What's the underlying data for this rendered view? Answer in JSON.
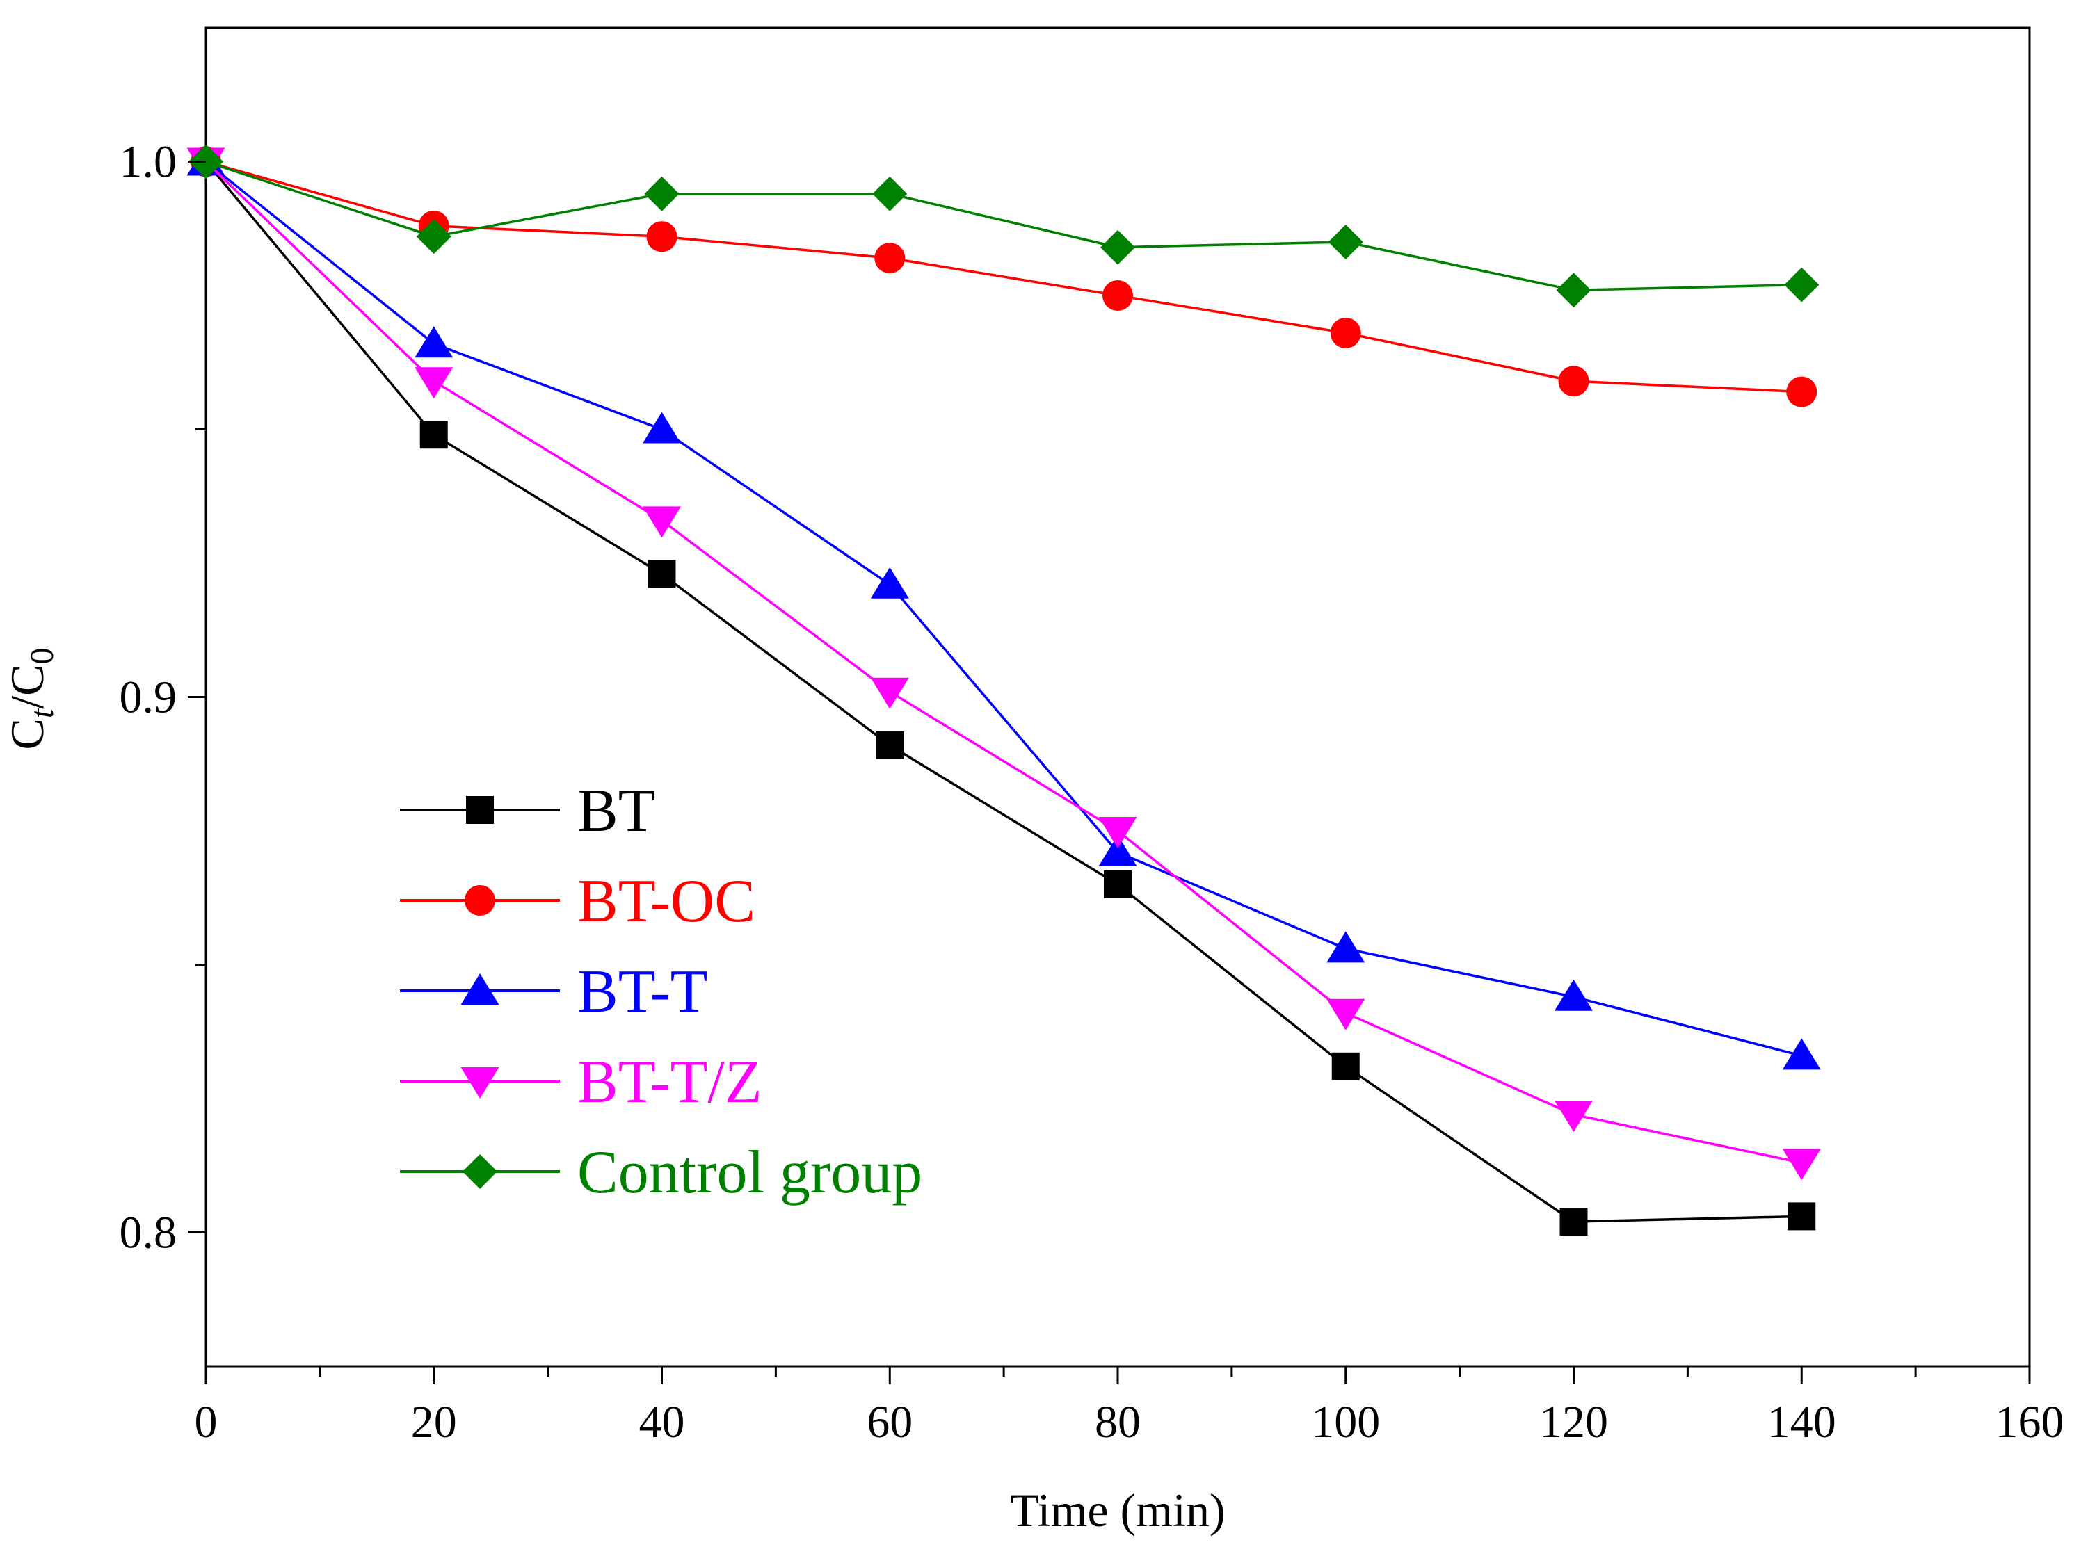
{
  "chart_data": {
    "type": "line",
    "title": "",
    "xlabel": "Time (min)",
    "ylabel_main": "C",
    "ylabel_sub1": "t",
    "ylabel_mid": "/C",
    "ylabel_sub2": "0",
    "xlim": [
      0,
      160
    ],
    "ylim": [
      0.775,
      1.025
    ],
    "x_ticks": [
      0,
      20,
      40,
      60,
      80,
      100,
      120,
      140,
      160
    ],
    "x_minor_step": 10,
    "y_ticks": [
      0.8,
      0.9,
      1.0
    ],
    "y_tick_labels": [
      "0.8",
      "0.9",
      "1.0"
    ],
    "y_minor_step": 0.05,
    "grid": false,
    "legend_position": "lower-left",
    "x": [
      0,
      20,
      40,
      60,
      80,
      100,
      120,
      140
    ],
    "series": [
      {
        "name": "BT",
        "color": "#000000",
        "marker": "square",
        "values": [
          1.0,
          0.949,
          0.923,
          0.891,
          0.865,
          0.831,
          0.802,
          0.803
        ]
      },
      {
        "name": "BT-OC",
        "color": "#ff0000",
        "marker": "circle",
        "values": [
          1.0,
          0.988,
          0.986,
          0.982,
          0.975,
          0.968,
          0.959,
          0.957
        ]
      },
      {
        "name": "BT-T",
        "color": "#0000ff",
        "marker": "triangle-up",
        "values": [
          1.0,
          0.966,
          0.95,
          0.921,
          0.871,
          0.853,
          0.844,
          0.833
        ]
      },
      {
        "name": "BT-T/Z",
        "color": "#ff00ff",
        "marker": "triangle-down",
        "values": [
          1.0,
          0.959,
          0.933,
          0.901,
          0.875,
          0.841,
          0.822,
          0.813
        ]
      },
      {
        "name": "Control group",
        "color": "#008000",
        "marker": "diamond",
        "values": [
          1.0,
          0.986,
          0.994,
          0.994,
          0.984,
          0.985,
          0.976,
          0.977
        ]
      }
    ]
  }
}
